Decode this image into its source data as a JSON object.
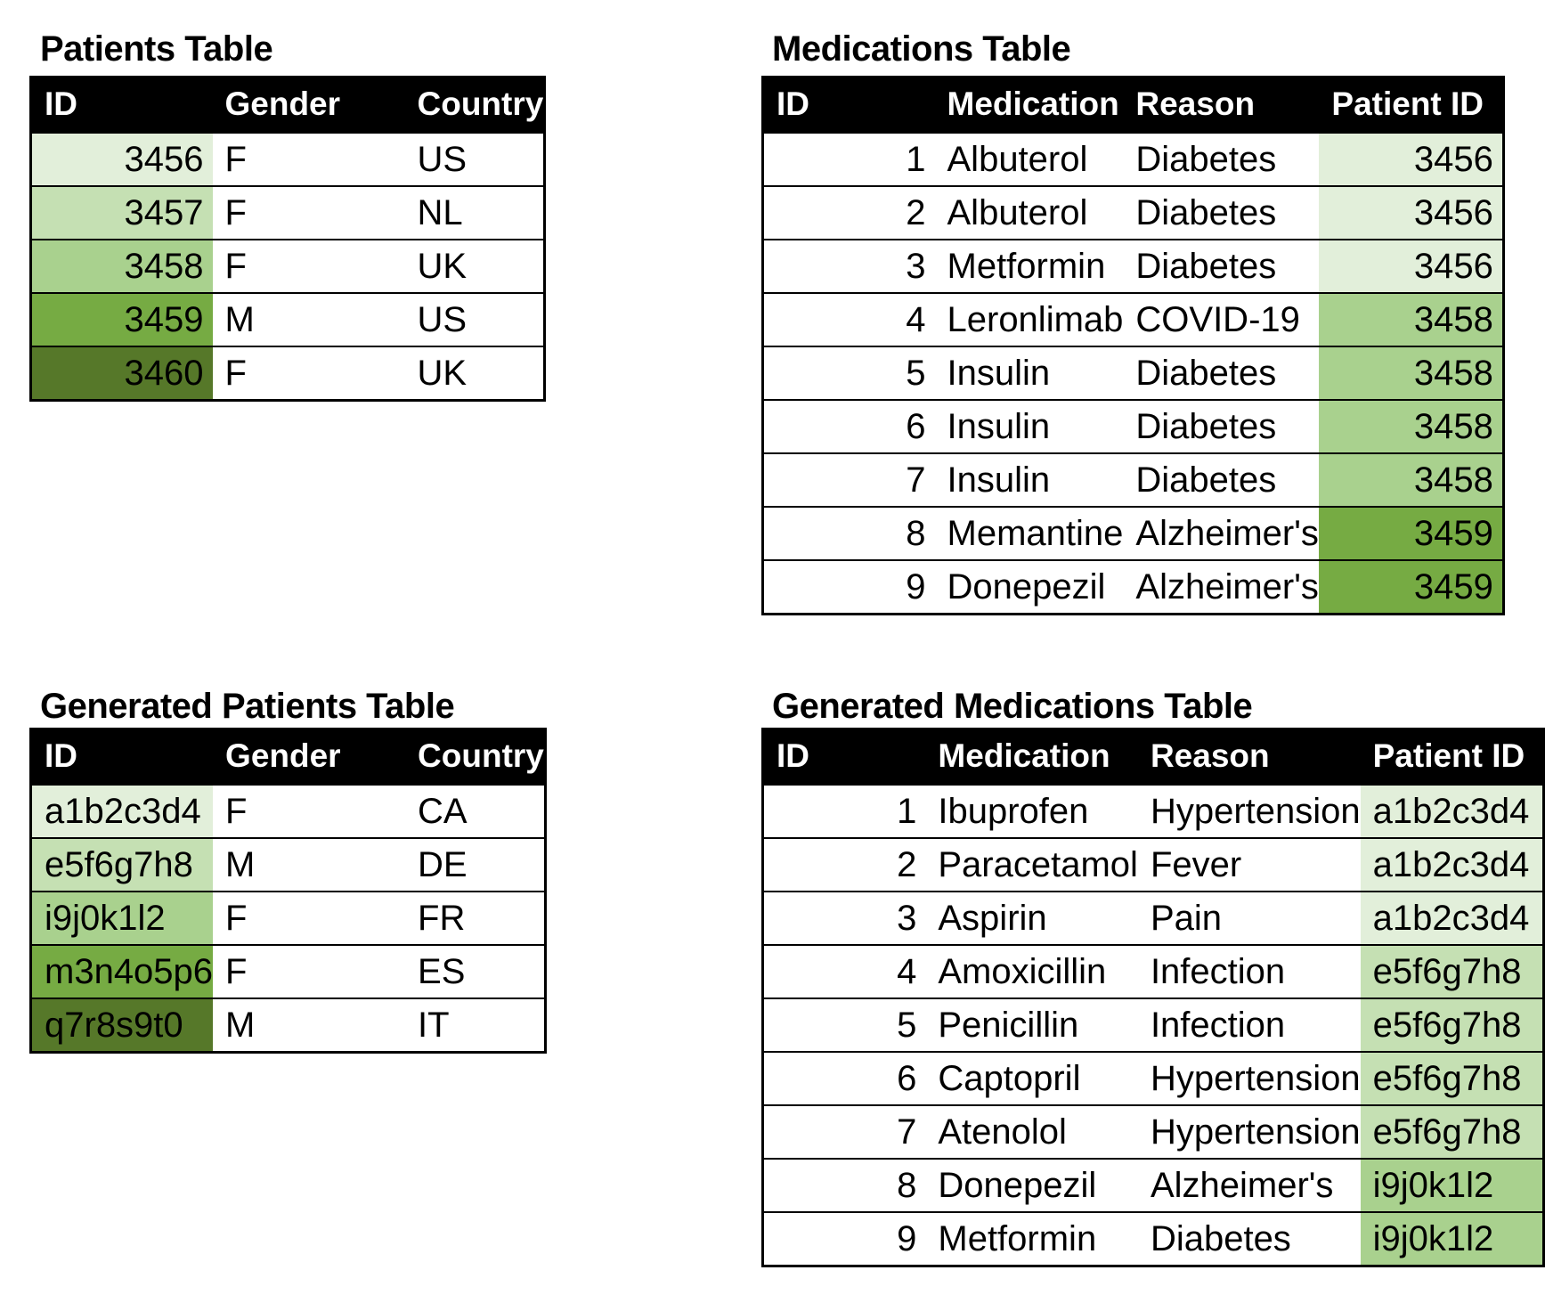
{
  "tables": {
    "patients": {
      "title": "Patients Table",
      "headers": [
        "ID",
        "Gender",
        "Country"
      ],
      "shade_col": 0,
      "rows": [
        {
          "cells": [
            "3456",
            "F",
            "US"
          ],
          "shade": "#E2EFDA"
        },
        {
          "cells": [
            "3457",
            "F",
            "NL"
          ],
          "shade": "#C5E0B3"
        },
        {
          "cells": [
            "3458",
            "F",
            "UK"
          ],
          "shade": "#A9D18E"
        },
        {
          "cells": [
            "3459",
            "M",
            "US"
          ],
          "shade": "#76AB43"
        },
        {
          "cells": [
            "3460",
            "F",
            "UK"
          ],
          "shade": "#567829"
        }
      ]
    },
    "medications": {
      "title": "Medications Table",
      "headers": [
        "ID",
        "Medication",
        "Reason",
        "Patient ID"
      ],
      "shade_col": 3,
      "rows": [
        {
          "cells": [
            "1",
            "Albuterol",
            "Diabetes",
            "3456"
          ],
          "shade": "#E2EFDA"
        },
        {
          "cells": [
            "2",
            "Albuterol",
            "Diabetes",
            "3456"
          ],
          "shade": "#E2EFDA"
        },
        {
          "cells": [
            "3",
            "Metformin",
            "Diabetes",
            "3456"
          ],
          "shade": "#E2EFDA"
        },
        {
          "cells": [
            "4",
            "Leronlimab",
            "COVID-19",
            "3458"
          ],
          "shade": "#A9D18E"
        },
        {
          "cells": [
            "5",
            "Insulin",
            "Diabetes",
            "3458"
          ],
          "shade": "#A9D18E"
        },
        {
          "cells": [
            "6",
            "Insulin",
            "Diabetes",
            "3458"
          ],
          "shade": "#A9D18E"
        },
        {
          "cells": [
            "7",
            "Insulin",
            "Diabetes",
            "3458"
          ],
          "shade": "#A9D18E"
        },
        {
          "cells": [
            "8",
            "Memantine",
            "Alzheimer's",
            "3459"
          ],
          "shade": "#76AB43"
        },
        {
          "cells": [
            "9",
            "Donepezil",
            "Alzheimer's",
            "3459"
          ],
          "shade": "#76AB43"
        }
      ]
    },
    "generated_patients": {
      "title": "Generated Patients Table",
      "headers": [
        "ID",
        "Gender",
        "Country"
      ],
      "shade_col": 0,
      "rows": [
        {
          "cells": [
            "a1b2c3d4",
            "F",
            "CA"
          ],
          "shade": "#E2EFDA"
        },
        {
          "cells": [
            "e5f6g7h8",
            "M",
            "DE"
          ],
          "shade": "#C5E0B3"
        },
        {
          "cells": [
            "i9j0k1l2",
            "F",
            "FR"
          ],
          "shade": "#A9D18E"
        },
        {
          "cells": [
            "m3n4o5p6",
            "F",
            "ES"
          ],
          "shade": "#76AB43"
        },
        {
          "cells": [
            "q7r8s9t0",
            "M",
            "IT"
          ],
          "shade": "#567829"
        }
      ]
    },
    "generated_medications": {
      "title": "Generated Medications Table",
      "headers": [
        "ID",
        "Medication",
        "Reason",
        "Patient ID"
      ],
      "shade_col": 3,
      "rows": [
        {
          "cells": [
            "1",
            "Ibuprofen",
            "Hypertension",
            "a1b2c3d4"
          ],
          "shade": "#E2EFDA"
        },
        {
          "cells": [
            "2",
            "Paracetamol",
            "Fever",
            "a1b2c3d4"
          ],
          "shade": "#E2EFDA"
        },
        {
          "cells": [
            "3",
            "Aspirin",
            "Pain",
            "a1b2c3d4"
          ],
          "shade": "#E2EFDA"
        },
        {
          "cells": [
            "4",
            "Amoxicillin",
            "Infection",
            "e5f6g7h8"
          ],
          "shade": "#C5E0B3"
        },
        {
          "cells": [
            "5",
            "Penicillin",
            "Infection",
            "e5f6g7h8"
          ],
          "shade": "#C5E0B3"
        },
        {
          "cells": [
            "6",
            "Captopril",
            "Hypertension",
            "e5f6g7h8"
          ],
          "shade": "#C5E0B3"
        },
        {
          "cells": [
            "7",
            "Atenolol",
            "Hypertension",
            "e5f6g7h8"
          ],
          "shade": "#C5E0B3"
        },
        {
          "cells": [
            "8",
            "Donepezil",
            "Alzheimer's",
            "i9j0k1l2"
          ],
          "shade": "#A9D18E"
        },
        {
          "cells": [
            "9",
            "Metformin",
            "Diabetes",
            "i9j0k1l2"
          ],
          "shade": "#A9D18E"
        }
      ]
    }
  },
  "colors": {
    "shade_level_1": "#E2EFDA",
    "shade_level_2": "#C5E0B3",
    "shade_level_3": "#A9D18E",
    "shade_level_4": "#76AB43",
    "shade_level_5": "#567829",
    "header_bg": "#000000",
    "header_text": "#FFFFFF"
  }
}
